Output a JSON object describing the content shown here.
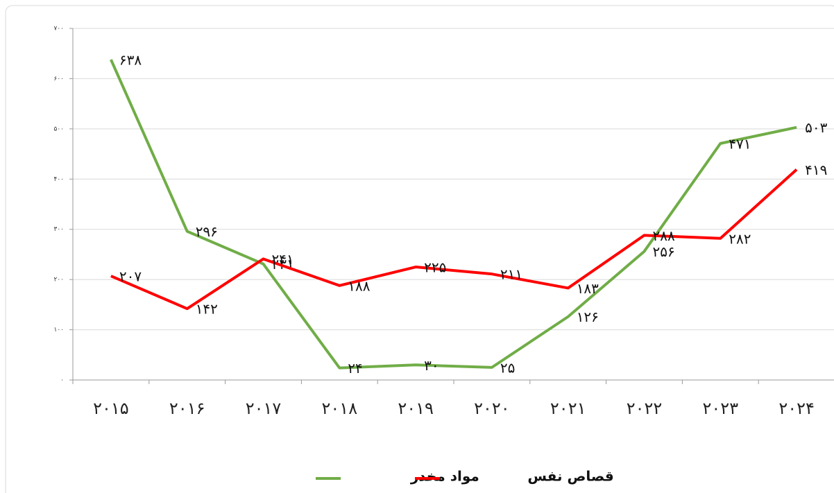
{
  "chart_data": {
    "type": "line",
    "categories": [
      "۲۰۱۵",
      "۲۰۱۶",
      "۲۰۱۷",
      "۲۰۱۸",
      "۲۰۱۹",
      "۲۰۲۰",
      "۲۰۲۱",
      "۲۰۲۲",
      "۲۰۲۳",
      "۲۰۲۴"
    ],
    "series": [
      {
        "name": "مواد مخدر",
        "color": "#70ad47",
        "values": [
          638,
          296,
          231,
          24,
          30,
          25,
          126,
          256,
          471,
          503
        ],
        "value_labels": [
          "۶۳۸",
          "۲۹۶",
          "۲۳۱",
          "۲۴",
          "۳۰",
          "۲۵",
          "۱۲۶",
          "۲۵۶",
          "۴۷۱",
          "۵۰۳"
        ]
      },
      {
        "name": "قصاص نفس",
        "color": "#ff0000",
        "values": [
          207,
          142,
          241,
          188,
          225,
          211,
          183,
          288,
          282,
          419
        ],
        "value_labels": [
          "۲۰۷",
          "۱۴۲",
          "۲۴۱",
          "۱۸۸",
          "۲۲۵",
          "۲۱۱",
          "۱۸۳",
          "۲۸۸",
          "۲۸۲",
          "۴۱۹"
        ]
      }
    ],
    "ylim": [
      0,
      700
    ],
    "yticks": [
      {
        "value": 0,
        "label": "۰"
      },
      {
        "value": 100,
        "label": "۱۰۰"
      },
      {
        "value": 200,
        "label": "۲۰۰"
      },
      {
        "value": 300,
        "label": "۳۰۰"
      },
      {
        "value": 400,
        "label": "۴۰۰"
      },
      {
        "value": 500,
        "label": "۵۰۰"
      },
      {
        "value": 600,
        "label": "۶۰۰"
      },
      {
        "value": 700,
        "label": "۷۰۰"
      }
    ],
    "grid": true
  }
}
